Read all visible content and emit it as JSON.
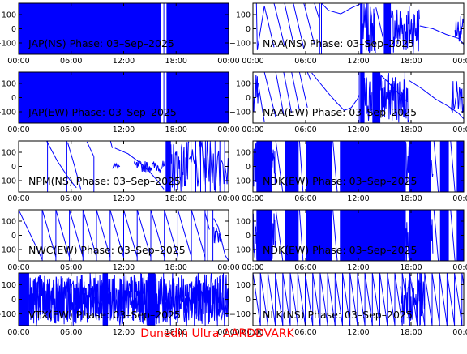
{
  "chart_data": [
    {
      "type": "line",
      "title": "JAP(NS) Phase: 03–Sep–2025",
      "yticks": [
        "100",
        "0",
        "−100"
      ],
      "ylim": [
        -180,
        180
      ],
      "xlim": [
        0,
        24
      ],
      "xticks": [
        "00:00",
        "06:00",
        "12:00",
        "18:00",
        "00:00"
      ],
      "pattern": "dense",
      "color": "#0000ff"
    },
    {
      "type": "line",
      "title": "NAA(NS) Phase: 03–Sep–2025",
      "yticks": [
        "100",
        "0",
        "−100"
      ],
      "ylim": [
        -180,
        180
      ],
      "xlim": [
        0,
        24
      ],
      "xticks": [
        "00:00",
        "06:00",
        "12:00",
        "18:00",
        "00:00"
      ],
      "pattern": "naa-ns",
      "color": "#0000ff"
    },
    {
      "type": "line",
      "title": "JAP(EW) Phase: 03–Sep–2025",
      "yticks": [
        "100",
        "0",
        "−100"
      ],
      "ylim": [
        -180,
        180
      ],
      "xlim": [
        0,
        24
      ],
      "xticks": [
        "00:00",
        "06:00",
        "12:00",
        "18:00",
        "00:00"
      ],
      "pattern": "dense",
      "color": "#0000ff"
    },
    {
      "type": "line",
      "title": "NAA(EW) Phase: 03–Sep–2025",
      "yticks": [
        "100",
        "0",
        "−100"
      ],
      "ylim": [
        -180,
        180
      ],
      "xlim": [
        0,
        24
      ],
      "xticks": [
        "00:00",
        "06:00",
        "12:00",
        "18:00",
        "00:00"
      ],
      "pattern": "naa-ew",
      "color": "#0000ff"
    },
    {
      "type": "line",
      "title": "NPM(NS) Phase: 03–Sep–2025",
      "yticks": [
        "100",
        "0",
        "−100"
      ],
      "ylim": [
        -180,
        180
      ],
      "xlim": [
        0,
        24
      ],
      "xticks": [
        "00:00",
        "06:00",
        "12:00",
        "18:00",
        "00:00"
      ],
      "pattern": "npm",
      "color": "#0000ff"
    },
    {
      "type": "line",
      "title": "NDK(EW) Phase: 03–Sep–2025",
      "yticks": [
        "100",
        "0",
        "−100"
      ],
      "ylim": [
        -180,
        180
      ],
      "xlim": [
        0,
        24
      ],
      "xticks": [
        "00:00",
        "06:00",
        "12:00",
        "18:00",
        "00:00"
      ],
      "pattern": "ndk",
      "color": "#0000ff"
    },
    {
      "type": "line",
      "title": "NWC(EW) Phase: 03–Sep–2025",
      "yticks": [
        "100",
        "0",
        "−100"
      ],
      "ylim": [
        -180,
        180
      ],
      "xlim": [
        0,
        24
      ],
      "xticks": [
        "00:00",
        "06:00",
        "12:00",
        "18:00",
        "00:00"
      ],
      "pattern": "nwc",
      "color": "#0000ff"
    },
    {
      "type": "line",
      "title": "NDK(EW) Phase: 03–Sep–2025",
      "yticks": [
        "100",
        "0",
        "−100"
      ],
      "ylim": [
        -180,
        180
      ],
      "xlim": [
        0,
        24
      ],
      "xticks": [
        "00:00",
        "06:00",
        "12:00",
        "18:00",
        "00:00"
      ],
      "pattern": "ndk",
      "color": "#0000ff"
    },
    {
      "type": "line",
      "title": "VTX(EW) Phase: 03–Sep–2025",
      "yticks": [
        "100",
        "0",
        "−100"
      ],
      "ylim": [
        -180,
        180
      ],
      "xlim": [
        0,
        24
      ],
      "xticks": [
        "00:00",
        "06:00",
        "12:00",
        "18:00",
        "00:00"
      ],
      "pattern": "vtx",
      "color": "#0000ff"
    },
    {
      "type": "line",
      "title": "NLK(NS) Phase: 03–Sep–2025",
      "yticks": [
        "100",
        "0",
        "−100"
      ],
      "ylim": [
        -180,
        180
      ],
      "xlim": [
        0,
        24
      ],
      "xticks": [
        "00:00",
        "06:00",
        "12:00",
        "18:00",
        "00:00"
      ],
      "pattern": "nlk",
      "color": "#0000ff"
    }
  ],
  "footer": {
    "text": "Dunedin Ultra AARDDVARK",
    "color": "#ff0000"
  }
}
